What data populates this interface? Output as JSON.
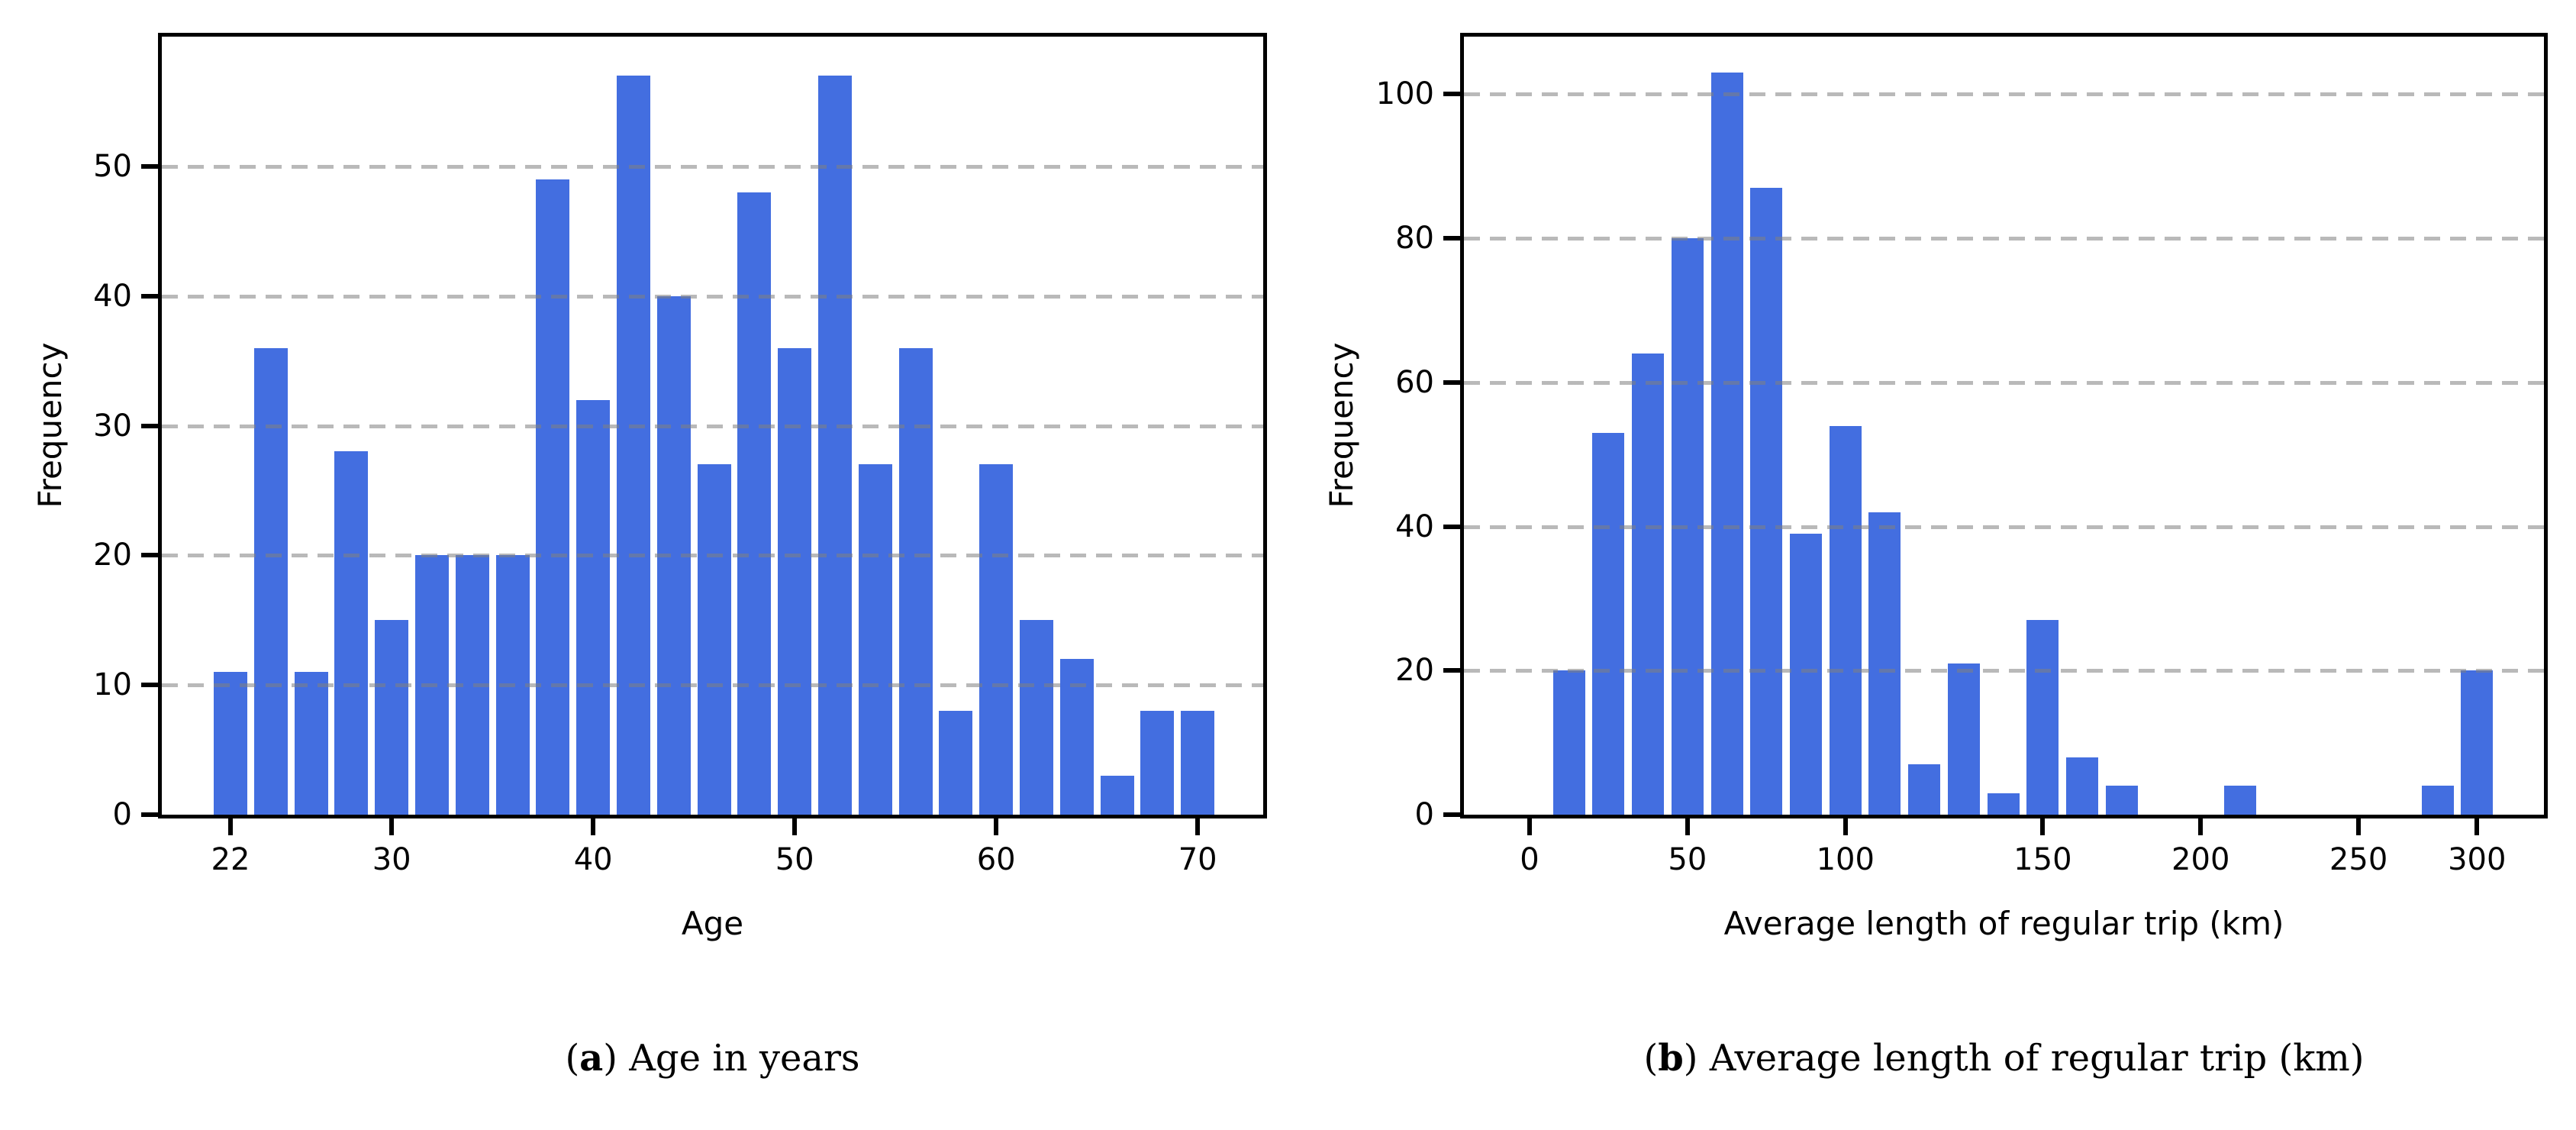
{
  "figure": {
    "background": "#ffffff",
    "bar_color": "#436ee0",
    "grid_color": "#b3b3b3",
    "axis_color": "#000000"
  },
  "chart_data": [
    {
      "type": "bar",
      "panel": "a",
      "caption": {
        "pre": "(",
        "bold": "a",
        "post": ") Age in years"
      },
      "xlabel": "Age",
      "ylabel": "Frequency",
      "ylim": [
        0,
        60
      ],
      "yticks": [
        0,
        10,
        20,
        30,
        40,
        50
      ],
      "grid": "horizontal-dashed",
      "legend": "none",
      "bin_width_years": 2,
      "bars": [
        {
          "slot": 0,
          "x": 22,
          "value": 11
        },
        {
          "slot": 1,
          "x": 24,
          "value": 36
        },
        {
          "slot": 2,
          "x": 26,
          "value": 11
        },
        {
          "slot": 3,
          "x": 28,
          "value": 28
        },
        {
          "slot": 4,
          "x": 30,
          "value": 15
        },
        {
          "slot": 5,
          "x": 32,
          "value": 20
        },
        {
          "slot": 6,
          "x": 34,
          "value": 20
        },
        {
          "slot": 7,
          "x": 36,
          "value": 20
        },
        {
          "slot": 8,
          "x": 38,
          "value": 49
        },
        {
          "slot": 9,
          "x": 40,
          "value": 32
        },
        {
          "slot": 10,
          "x": 42,
          "value": 57
        },
        {
          "slot": 11,
          "x": 44,
          "value": 40
        },
        {
          "slot": 12,
          "x": 46,
          "value": 27
        },
        {
          "slot": 13,
          "x": 48,
          "value": 48
        },
        {
          "slot": 14,
          "x": 50,
          "value": 36
        },
        {
          "slot": 15,
          "x": 52,
          "value": 57
        },
        {
          "slot": 16,
          "x": 54,
          "value": 27
        },
        {
          "slot": 17,
          "x": 56,
          "value": 36
        },
        {
          "slot": 18,
          "x": 58,
          "value": 8
        },
        {
          "slot": 19,
          "x": 60,
          "value": 27
        },
        {
          "slot": 20,
          "x": 62,
          "value": 15
        },
        {
          "slot": 21,
          "x": 64,
          "value": 12
        },
        {
          "slot": 22,
          "x": 66,
          "value": 3
        },
        {
          "slot": 23,
          "x": 68,
          "value": 8
        },
        {
          "slot": 24,
          "x": 70,
          "value": 8
        }
      ],
      "xticks": [
        {
          "slot": 0,
          "label": "22"
        },
        {
          "slot": 4,
          "label": "30"
        },
        {
          "slot": 9,
          "label": "40"
        },
        {
          "slot": 14,
          "label": "50"
        },
        {
          "slot": 19,
          "label": "60"
        },
        {
          "slot": 24,
          "label": "70"
        }
      ]
    },
    {
      "type": "bar",
      "panel": "b",
      "caption": {
        "pre": "(",
        "bold": "b",
        "post": ") Average length of regular trip (km)"
      },
      "xlabel": "Average length of regular trip (km)",
      "ylabel": "Frequency",
      "ylim": [
        0,
        108
      ],
      "yticks": [
        0,
        20,
        40,
        60,
        80,
        100
      ],
      "grid": "horizontal-dashed",
      "legend": "none",
      "bars": [
        {
          "slot": 1,
          "value": 20
        },
        {
          "slot": 2,
          "value": 53
        },
        {
          "slot": 3,
          "value": 64
        },
        {
          "slot": 4,
          "value": 80
        },
        {
          "slot": 5,
          "value": 103
        },
        {
          "slot": 6,
          "value": 87
        },
        {
          "slot": 7,
          "value": 39
        },
        {
          "slot": 8,
          "value": 54
        },
        {
          "slot": 9,
          "value": 42
        },
        {
          "slot": 10,
          "value": 7
        },
        {
          "slot": 11,
          "value": 21
        },
        {
          "slot": 12,
          "value": 3
        },
        {
          "slot": 13,
          "value": 27
        },
        {
          "slot": 14,
          "value": 8
        },
        {
          "slot": 15,
          "value": 4
        },
        {
          "slot": 18,
          "value": 4
        },
        {
          "slot": 23,
          "value": 4
        },
        {
          "slot": 24,
          "value": 20
        }
      ],
      "xticks": [
        {
          "slot": 0,
          "label": "0"
        },
        {
          "slot": 4,
          "label": "50"
        },
        {
          "slot": 8,
          "label": "100"
        },
        {
          "slot": 13,
          "label": "150"
        },
        {
          "slot": 17,
          "label": "200"
        },
        {
          "slot": 21,
          "label": "250"
        },
        {
          "slot": 24,
          "label": "300"
        }
      ]
    }
  ]
}
